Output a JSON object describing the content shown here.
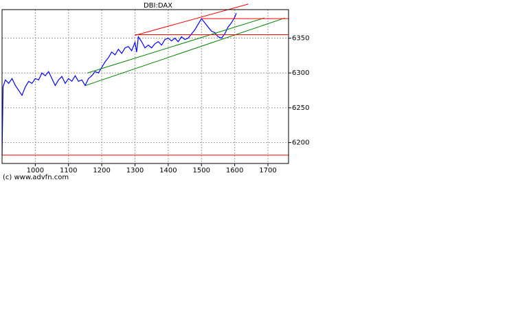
{
  "chart_data": {
    "type": "line",
    "title": "DBI:DAX",
    "credit": "(c) www.advfn.com",
    "x": [
      900,
      903,
      910,
      920,
      930,
      940,
      950,
      960,
      970,
      980,
      990,
      1000,
      1010,
      1020,
      1030,
      1040,
      1050,
      1060,
      1070,
      1080,
      1090,
      1100,
      1110,
      1120,
      1130,
      1140,
      1150,
      1160,
      1170,
      1180,
      1190,
      1200,
      1210,
      1220,
      1230,
      1240,
      1250,
      1260,
      1270,
      1280,
      1290,
      1300,
      1305,
      1310,
      1320,
      1330,
      1340,
      1350,
      1360,
      1370,
      1380,
      1390,
      1400,
      1410,
      1420,
      1430,
      1440,
      1450,
      1460,
      1470,
      1480,
      1490,
      1500,
      1510,
      1520,
      1530,
      1540,
      1550,
      1560,
      1570,
      1580,
      1590,
      1600,
      1605
    ],
    "series": [
      {
        "name": "DBI:DAX",
        "color": "#0000ff",
        "values": [
          6182,
          6280,
          6290,
          6285,
          6292,
          6282,
          6275,
          6268,
          6280,
          6288,
          6285,
          6292,
          6290,
          6300,
          6296,
          6302,
          6292,
          6282,
          6290,
          6295,
          6285,
          6292,
          6288,
          6296,
          6288,
          6290,
          6282,
          6292,
          6296,
          6302,
          6300,
          6308,
          6316,
          6322,
          6330,
          6326,
          6334,
          6328,
          6336,
          6338,
          6332,
          6344,
          6330,
          6352,
          6345,
          6336,
          6340,
          6336,
          6342,
          6345,
          6340,
          6348,
          6350,
          6346,
          6350,
          6345,
          6352,
          6348,
          6350,
          6356,
          6362,
          6370,
          6378,
          6372,
          6366,
          6360,
          6358,
          6352,
          6350,
          6356,
          6366,
          6372,
          6380,
          6386
        ]
      }
    ],
    "trendlines": [
      {
        "color": "#008000",
        "x": [
          1157,
          1689
        ],
        "y": [
          6300,
          6379
        ]
      },
      {
        "color": "#008000",
        "x": [
          1151,
          1751
        ],
        "y": [
          6282,
          6379
        ]
      },
      {
        "color": "#ff0000",
        "x": [
          1300,
          1641
        ],
        "y": [
          6354,
          6399
        ]
      },
      {
        "color": "#ff0000",
        "x": [
          1300,
          1762
        ],
        "y": [
          6355,
          6355
        ]
      },
      {
        "color": "#ff0000",
        "x": [
          1500,
          1762
        ],
        "y": [
          6378,
          6378
        ]
      },
      {
        "color": "#ff0000",
        "x": [
          900,
          1762
        ],
        "y": [
          6182,
          6182
        ]
      }
    ],
    "xlim": [
      900,
      1762
    ],
    "ylim": [
      6170,
      6391
    ],
    "xticks": [
      1000,
      1100,
      1200,
      1300,
      1400,
      1500,
      1600,
      1700
    ],
    "yticks": [
      6200,
      6250,
      6300,
      6350
    ],
    "grid": true
  }
}
